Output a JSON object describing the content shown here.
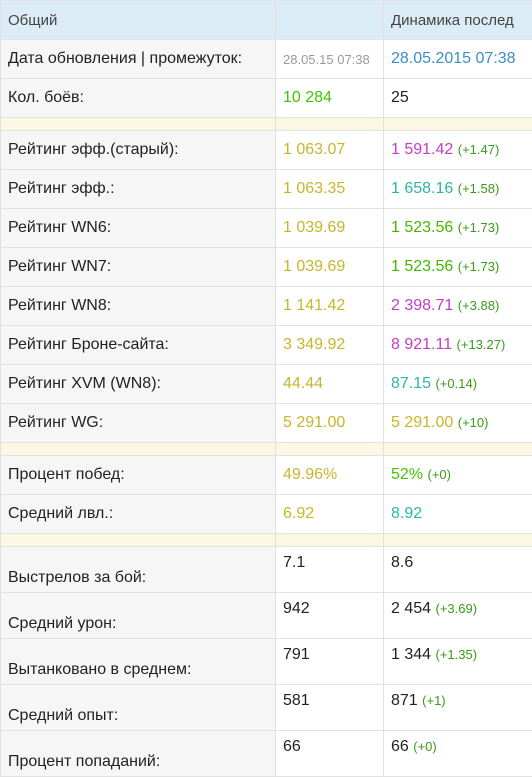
{
  "header": {
    "title": "Общий",
    "dynamics": "Динамика послед"
  },
  "groups": [
    {
      "rows": [
        {
          "label": "Дата обновления | промежуток:",
          "value": "28.05.15 07:38",
          "value_color": "#9a9a9a",
          "value_size": 13,
          "current": "28.05.2015 07:38",
          "current_color": "#3a8fc4"
        },
        {
          "label": "Кол. боёв:",
          "value": "10 284",
          "value_color": "#44c400",
          "current": "25",
          "current_color": "#222222"
        }
      ]
    },
    {
      "rows": [
        {
          "label": "Рейтинг эфф.(старый):",
          "value": "1 063.07",
          "value_color": "#c9b52a",
          "current": "1 591.42",
          "current_color": "#c23fc2",
          "delta": "(+1.47)"
        },
        {
          "label": "Рейтинг эфф.:",
          "value": "1 063.35",
          "value_color": "#c9b52a",
          "current": "1 658.16",
          "current_color": "#2db5a6",
          "delta": "(+1.58)"
        },
        {
          "label": "Рейтинг WN6:",
          "value": "1 039.69",
          "value_color": "#c9b52a",
          "current": "1 523.56",
          "current_color": "#44b800",
          "delta": "(+1.73)"
        },
        {
          "label": "Рейтинг WN7:",
          "value": "1 039.69",
          "value_color": "#c9b52a",
          "current": "1 523.56",
          "current_color": "#44b800",
          "delta": "(+1.73)"
        },
        {
          "label": "Рейтинг WN8:",
          "value": "1 141.42",
          "value_color": "#c9b52a",
          "current": "2 398.71",
          "current_color": "#c23fc2",
          "delta": "(+3.88)"
        },
        {
          "label": "Рейтинг Броне-сайта:",
          "value": "3 349.92",
          "value_color": "#c9b52a",
          "current": "8 921.11",
          "current_color": "#c23fc2",
          "delta": "(+13.27)"
        },
        {
          "label": "Рейтинг XVM (WN8):",
          "value": "44.44",
          "value_color": "#c9b52a",
          "current": "87.15",
          "current_color": "#2db5a6",
          "delta": "(+0.14)"
        },
        {
          "label": "Рейтинг WG:",
          "value": "5 291.00",
          "value_color": "#c9b52a",
          "current": "5 291.00",
          "current_color": "#c9b52a",
          "delta": "(+10)"
        }
      ]
    },
    {
      "rows": [
        {
          "label": "Процент побед:",
          "value": "49.96%",
          "value_color": "#c9b52a",
          "current": "52%",
          "current_color": "#44c400",
          "delta": "(+0)"
        },
        {
          "label": "Средний лвл.:",
          "value": "6.92",
          "value_color": "#c9b52a",
          "current": "8.92",
          "current_color": "#2db5a6"
        }
      ]
    },
    {
      "top_aligned": true,
      "rows": [
        {
          "label": "Выстрелов за бой:",
          "value": "7.1",
          "value_color": "#222222",
          "current": "8.6",
          "current_color": "#222222"
        },
        {
          "label": "Средний урон:",
          "value": "942",
          "value_color": "#222222",
          "current": "2 454",
          "current_color": "#222222",
          "delta": "(+3.69)"
        },
        {
          "label": "Вытанковано в среднем:",
          "value": "791",
          "value_color": "#222222",
          "current": "1 344",
          "current_color": "#222222",
          "delta": "(+1.35)"
        },
        {
          "label": "Средний опыт:",
          "value": "581",
          "value_color": "#222222",
          "current": "871",
          "current_color": "#222222",
          "delta": "(+1)"
        },
        {
          "label": "Процент попаданий:",
          "value": "66",
          "value_color": "#222222",
          "current": "66",
          "current_color": "#222222",
          "delta": "(+0)"
        }
      ]
    }
  ]
}
